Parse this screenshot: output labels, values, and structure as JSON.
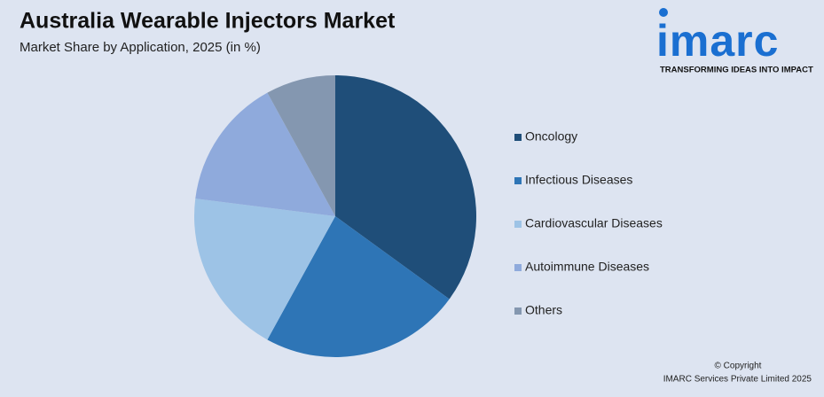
{
  "chart_data": {
    "type": "pie",
    "title": "Australia Wearable Injectors Market",
    "subtitle": "Market Share by Application, 2025 (in %)",
    "categories": [
      "Oncology",
      "Infectious Diseases",
      "Cardiovascular Diseases",
      "Autoimmune Diseases",
      "Others"
    ],
    "values": [
      35,
      23,
      19,
      15,
      8
    ],
    "colors": [
      "#1f4e79",
      "#2e75b6",
      "#9dc3e6",
      "#8faadc",
      "#8497b0"
    ],
    "legend": "right"
  },
  "branding": {
    "logo": "imarc",
    "tagline": "TRANSFORMING IDEAS INTO IMPACT",
    "copyright": "© Copyright",
    "company": "IMARC Services Private Limited 2025"
  }
}
